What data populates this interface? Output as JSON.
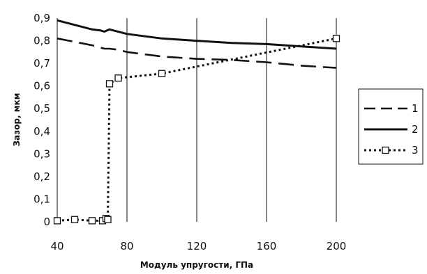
{
  "chart_data": {
    "type": "line",
    "xlabel": "Модуль упругости, ГПа",
    "ylabel": "Зазор, мкм",
    "xlim": [
      40,
      200
    ],
    "ylim": [
      0,
      0.9
    ],
    "x_ticks": [
      "40",
      "80",
      "120",
      "160",
      "200"
    ],
    "x_tick_values": [
      40,
      80,
      120,
      160,
      200
    ],
    "y_ticks": [
      "0",
      "0,1",
      "0,2",
      "0,3",
      "0,4",
      "0,5",
      "0,6",
      "0,7",
      "0,8",
      "0,9"
    ],
    "y_tick_values": [
      0,
      0.1,
      0.2,
      0.3,
      0.4,
      0.5,
      0.6,
      0.7,
      0.8,
      0.9
    ],
    "grid": "vertical",
    "legend_position": "right",
    "series": [
      {
        "name": "1",
        "style": "dashed",
        "x": [
          40,
          50,
          60,
          67,
          70,
          75,
          80,
          100,
          120,
          140,
          160,
          180,
          200
        ],
        "y": [
          0.81,
          0.795,
          0.78,
          0.765,
          0.765,
          0.76,
          0.75,
          0.73,
          0.72,
          0.715,
          0.705,
          0.69,
          0.68
        ]
      },
      {
        "name": "2",
        "style": "solid",
        "x": [
          40,
          50,
          60,
          65,
          67,
          70,
          80,
          100,
          120,
          140,
          160,
          180,
          200
        ],
        "y": [
          0.89,
          0.87,
          0.85,
          0.845,
          0.84,
          0.85,
          0.83,
          0.81,
          0.8,
          0.79,
          0.785,
          0.775,
          0.765
        ]
      },
      {
        "name": "3",
        "style": "dotted-square-markers",
        "x": [
          40,
          50,
          60,
          66,
          68,
          69,
          70,
          75,
          100,
          200
        ],
        "y": [
          0.005,
          0.01,
          0.005,
          0.005,
          0.015,
          0.01,
          0.61,
          0.635,
          0.655,
          0.81
        ],
        "markers": [
          {
            "x": 40,
            "y": 0.005
          },
          {
            "x": 50,
            "y": 0.01
          },
          {
            "x": 60,
            "y": 0.005
          },
          {
            "x": 66,
            "y": 0.005
          },
          {
            "x": 68,
            "y": 0.015
          },
          {
            "x": 69,
            "y": 0.01
          },
          {
            "x": 70,
            "y": 0.61
          },
          {
            "x": 75,
            "y": 0.635
          },
          {
            "x": 100,
            "y": 0.655
          },
          {
            "x": 200,
            "y": 0.81
          }
        ]
      }
    ],
    "colors": {
      "line": "#111111",
      "marker_fill": "#ffffff",
      "grid": "#111111"
    }
  }
}
